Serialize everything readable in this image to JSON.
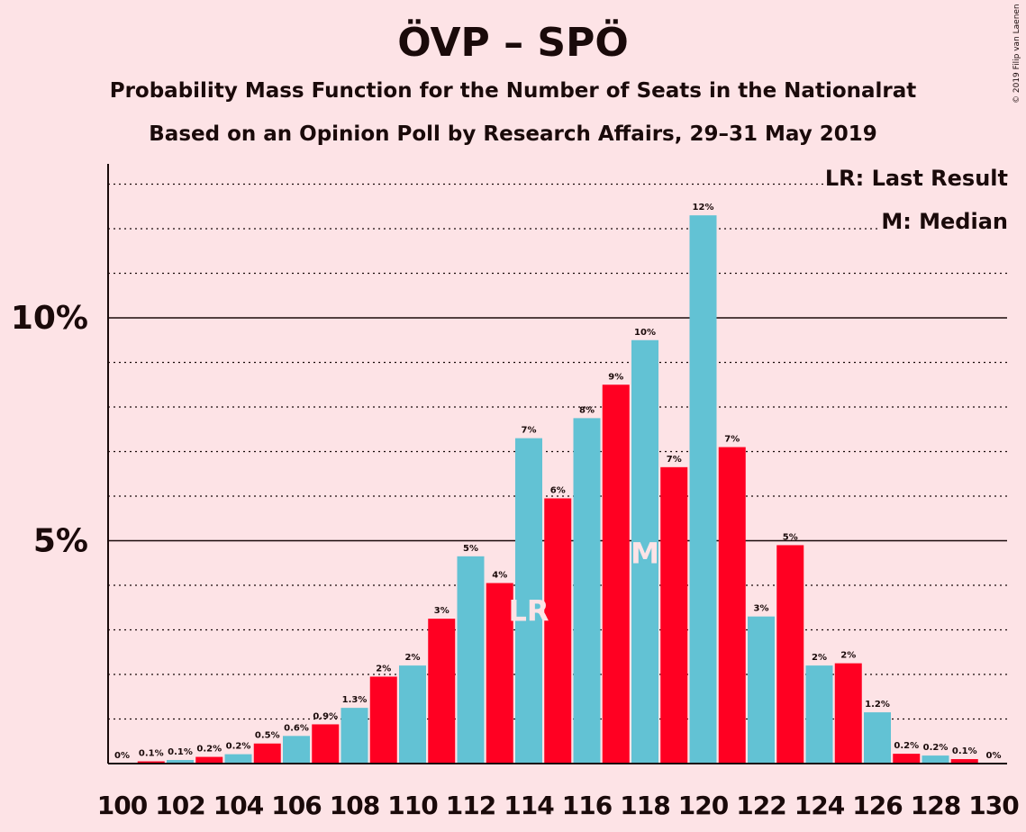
{
  "title": "ÖVP – SPÖ",
  "subtitle": "Probability Mass Function for the Number of Seats in the Nationalrat",
  "subtitle2": "Based on an Opinion Poll by Research Affairs, 29–31 May 2019",
  "copyright": "© 2019 Filip van Laenen",
  "legend": {
    "lr": "LR: Last Result",
    "m": "M: Median"
  },
  "colors": {
    "background": "#fde3e6",
    "bar_even": "#62c2d4",
    "bar_odd": "#ff0022",
    "text": "#1a0a0a"
  },
  "chart_data": {
    "type": "bar",
    "categories": [
      100,
      101,
      102,
      103,
      104,
      105,
      106,
      107,
      108,
      109,
      110,
      111,
      112,
      113,
      114,
      115,
      116,
      117,
      118,
      119,
      120,
      121,
      122,
      123,
      124,
      125,
      126,
      127,
      128,
      129,
      130
    ],
    "x_tick_labels": [
      "100",
      "102",
      "104",
      "106",
      "108",
      "110",
      "112",
      "114",
      "116",
      "118",
      "120",
      "122",
      "124",
      "126",
      "128",
      "130"
    ],
    "values": [
      0,
      0.05,
      0.08,
      0.15,
      0.21,
      0.45,
      0.62,
      0.88,
      1.25,
      1.95,
      2.2,
      3.25,
      4.65,
      4.05,
      7.3,
      5.95,
      7.75,
      8.5,
      9.5,
      6.65,
      12.3,
      7.1,
      3.3,
      4.9,
      2.2,
      2.25,
      1.15,
      0.22,
      0.18,
      0.1,
      0
    ],
    "data_labels": [
      "0%",
      "0.1%",
      "0.1%",
      "0.2%",
      "0.2%",
      "0.5%",
      "0.6%",
      "0.9%",
      "1.3%",
      "2%",
      "2%",
      "3%",
      "5%",
      "4%",
      "7%",
      "6%",
      "8%",
      "9%",
      "10%",
      "7%",
      "12%",
      "7%",
      "3%",
      "5%",
      "2%",
      "2%",
      "1.2%",
      "0.2%",
      "0.2%",
      "0.1%",
      "0%"
    ],
    "y_tick_labels": [
      "5%",
      "10%"
    ],
    "y_ticks": [
      5,
      10
    ],
    "ylim": [
      0,
      13.4
    ],
    "grid": "dotted every 1%",
    "last_result": {
      "seat": 114,
      "label": "LR"
    },
    "median": {
      "seat": 118,
      "label": "M"
    }
  }
}
